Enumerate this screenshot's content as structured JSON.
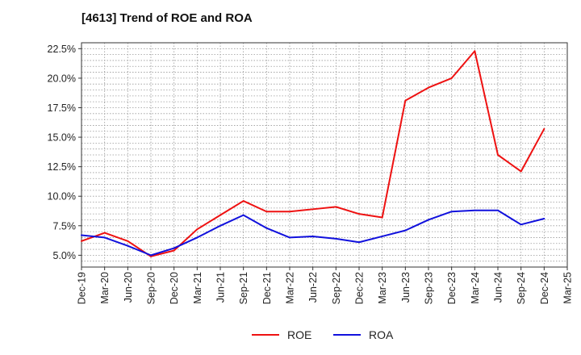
{
  "chart_data": {
    "type": "line",
    "title": "[4613]  Trend of ROE and ROA",
    "xlabel": "",
    "ylabel": "",
    "categories": [
      "Dec-19",
      "Mar-20",
      "Jun-20",
      "Sep-20",
      "Dec-20",
      "Mar-21",
      "Jun-21",
      "Sep-21",
      "Dec-21",
      "Mar-22",
      "Jun-22",
      "Sep-22",
      "Dec-22",
      "Mar-23",
      "Jun-23",
      "Sep-23",
      "Dec-23",
      "Mar-24",
      "Jun-24",
      "Sep-24",
      "Dec-24",
      "Mar-25"
    ],
    "yticks": [
      "5.0%",
      "7.5%",
      "10.0%",
      "12.5%",
      "15.0%",
      "17.5%",
      "20.0%",
      "22.5%"
    ],
    "ylim": [
      4.0,
      23.0
    ],
    "grid": true,
    "legend_position": "bottom-center",
    "series": [
      {
        "name": "ROE",
        "color": "#ee1111",
        "values": [
          6.2,
          6.9,
          6.2,
          4.9,
          5.4,
          7.2,
          8.4,
          9.6,
          8.7,
          8.7,
          8.9,
          9.1,
          8.5,
          8.2,
          18.1,
          19.2,
          20.0,
          22.3,
          13.5,
          12.1,
          15.7,
          null
        ]
      },
      {
        "name": "ROA",
        "color": "#1111dd",
        "values": [
          6.7,
          6.5,
          5.8,
          5.0,
          5.6,
          6.5,
          7.5,
          8.4,
          7.3,
          6.5,
          6.6,
          6.4,
          6.1,
          6.6,
          7.1,
          8.0,
          8.7,
          8.8,
          8.8,
          7.6,
          8.1,
          null
        ]
      }
    ]
  }
}
